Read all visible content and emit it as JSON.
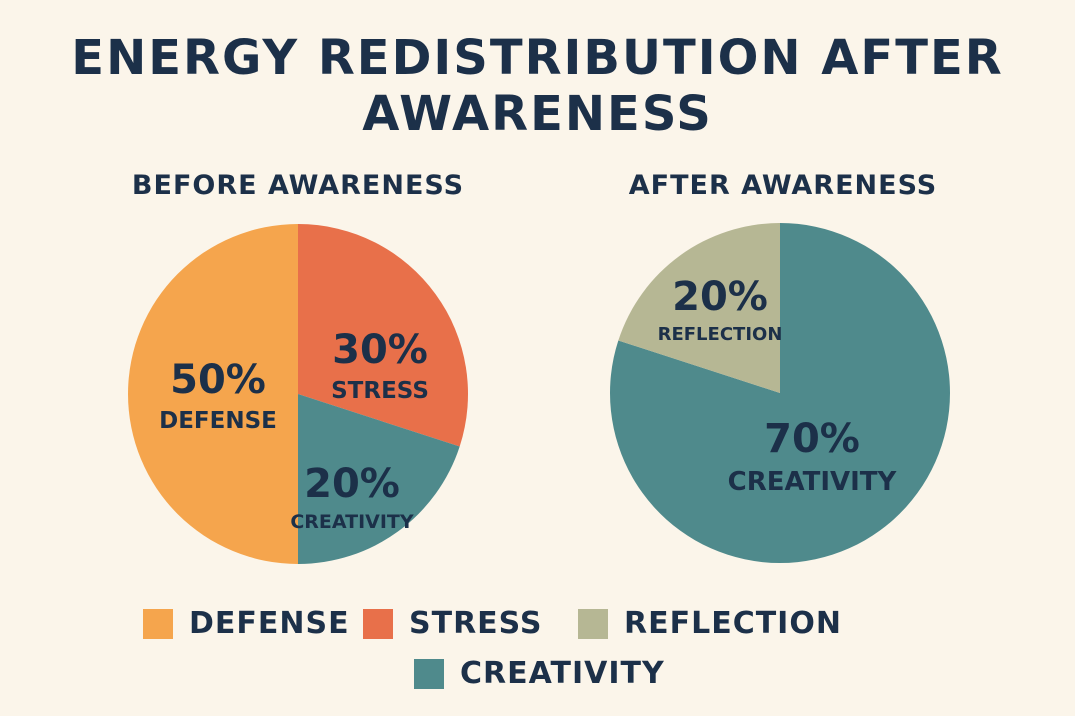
{
  "title_line1": "ENERGY REDISTRIBUTION AFTER",
  "title_line2": "AWARENESS",
  "colors": {
    "defense": "#f5a54d",
    "stress": "#e8704a",
    "reflection": "#b6b794",
    "creativity": "#4f8a8c",
    "text": "#1c3049",
    "background": "#fbf5ea"
  },
  "chart_data": [
    {
      "type": "pie",
      "title": "BEFORE AWARENESS",
      "slices": [
        {
          "label": "DEFENSE",
          "value": 50,
          "display": "50%",
          "color_key": "defense"
        },
        {
          "label": "STRESS",
          "value": 30,
          "display": "30%",
          "color_key": "stress"
        },
        {
          "label": "CREATIVITY",
          "value": 20,
          "display": "20%",
          "color_key": "creativity"
        }
      ]
    },
    {
      "type": "pie",
      "title": "AFTER AWARENESS",
      "slices": [
        {
          "label": "CREATIVITY",
          "value": 70,
          "display": "70%",
          "color_key": "creativity"
        },
        {
          "label": "REFLECTION",
          "value": 20,
          "display": "20%",
          "color_key": "reflection"
        }
      ]
    }
  ],
  "legend": [
    {
      "label": "DEFENSE",
      "color_key": "defense"
    },
    {
      "label": "STRESS",
      "color_key": "stress"
    },
    {
      "label": "REFLECTION",
      "color_key": "reflection"
    },
    {
      "label": "CREATIVITY",
      "color_key": "creativity"
    }
  ]
}
